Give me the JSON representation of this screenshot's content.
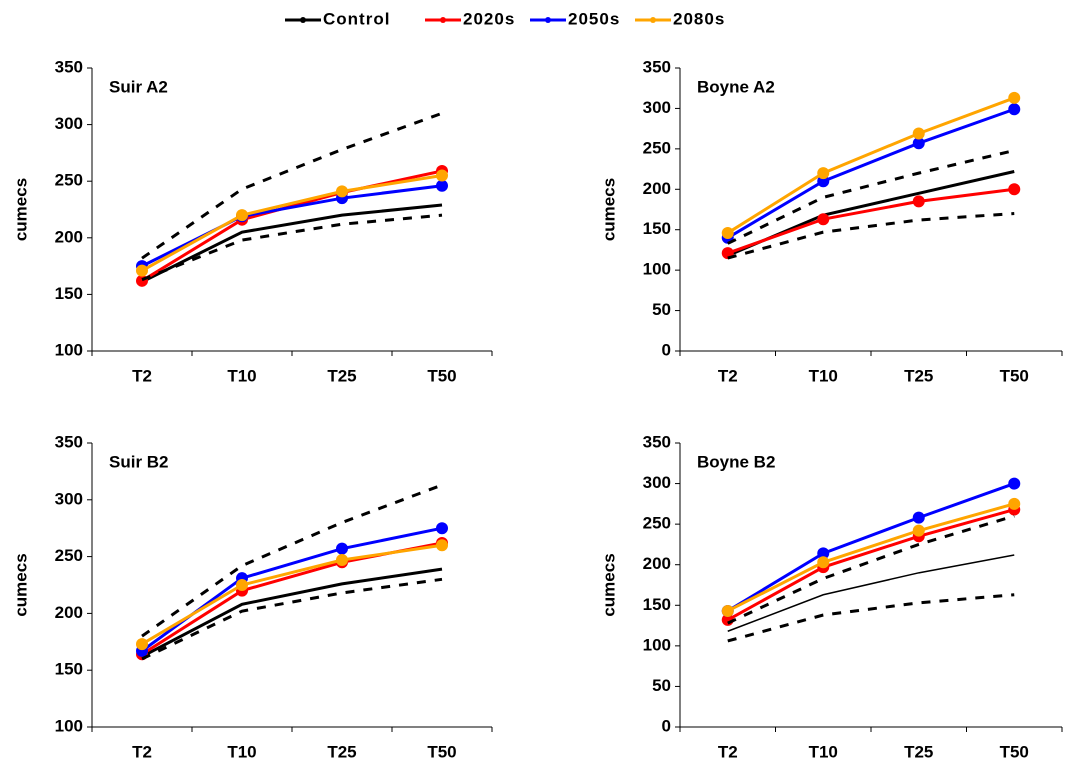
{
  "chart_data": [
    {
      "type": "line",
      "title": "Suir A2",
      "y_label": "cumecs",
      "categories": [
        "T2",
        "T10",
        "T25",
        "T50"
      ],
      "ylim": [
        100,
        350
      ],
      "yticks": [
        100,
        150,
        200,
        250,
        300,
        350
      ],
      "series": [
        {
          "name": "Control",
          "color": "#000000",
          "values": [
            161,
            205,
            220,
            229
          ]
        },
        {
          "name": "2020s",
          "color": "#ff0000",
          "values": [
            162,
            216,
            240,
            259
          ],
          "markers": true
        },
        {
          "name": "2050s",
          "color": "#0000ff",
          "values": [
            175,
            219,
            235,
            246
          ],
          "markers": true
        },
        {
          "name": "2080s",
          "color": "#ffa500",
          "values": [
            171,
            220,
            241,
            255
          ],
          "markers": true
        },
        {
          "color": "#000000",
          "values": [
            182,
            243,
            278,
            310
          ],
          "dashed": true
        },
        {
          "color": "#000000",
          "values": [
            163,
            198,
            212,
            220
          ],
          "dashed": true
        }
      ]
    },
    {
      "type": "line",
      "title": "Boyne A2",
      "y_label": "cumecs",
      "categories": [
        "T2",
        "T10",
        "T25",
        "T50"
      ],
      "ylim": [
        0,
        350
      ],
      "yticks": [
        0,
        50,
        100,
        150,
        200,
        250,
        300,
        350
      ],
      "series": [
        {
          "name": "Control",
          "color": "#000000",
          "values": [
            118,
            168,
            195,
            222
          ]
        },
        {
          "name": "2020s",
          "color": "#ff0000",
          "values": [
            121,
            163,
            185,
            200
          ],
          "markers": true
        },
        {
          "name": "2050s",
          "color": "#0000ff",
          "values": [
            140,
            210,
            257,
            299
          ],
          "markers": true
        },
        {
          "name": "2080s",
          "color": "#ffa500",
          "values": [
            146,
            220,
            269,
            313
          ],
          "markers": true
        },
        {
          "color": "#000000",
          "values": [
            133,
            190,
            220,
            248
          ],
          "dashed": true
        },
        {
          "color": "#000000",
          "values": [
            115,
            147,
            162,
            170
          ],
          "dashed": true
        }
      ]
    },
    {
      "type": "line",
      "title": "Suir B2",
      "y_label": "cumecs",
      "categories": [
        "T2",
        "T10",
        "T25",
        "T50"
      ],
      "ylim": [
        100,
        350
      ],
      "yticks": [
        100,
        150,
        200,
        250,
        300,
        350
      ],
      "series": [
        {
          "name": "Control",
          "color": "#000000",
          "values": [
            162,
            208,
            226,
            239
          ]
        },
        {
          "name": "2020s",
          "color": "#ff0000",
          "values": [
            164,
            220,
            245,
            262
          ],
          "markers": true
        },
        {
          "name": "2050s",
          "color": "#0000ff",
          "values": [
            167,
            231,
            257,
            275
          ],
          "markers": true
        },
        {
          "name": "2080s",
          "color": "#ffa500",
          "values": [
            173,
            225,
            247,
            260
          ],
          "markers": true
        },
        {
          "color": "#000000",
          "values": [
            180,
            242,
            280,
            313
          ],
          "dashed": true
        },
        {
          "color": "#000000",
          "values": [
            160,
            202,
            218,
            230
          ],
          "dashed": true
        }
      ]
    },
    {
      "type": "line",
      "title": "Boyne B2",
      "y_label": "cumecs",
      "categories": [
        "T2",
        "T10",
        "T25",
        "T50"
      ],
      "ylim": [
        0,
        350
      ],
      "yticks": [
        0,
        50,
        100,
        150,
        200,
        250,
        300,
        350
      ],
      "series": [
        {
          "name": "Control",
          "color": "#000000",
          "values": [
            118,
            163,
            190,
            212
          ],
          "thin": true
        },
        {
          "name": "2020s",
          "color": "#ff0000",
          "values": [
            132,
            197,
            235,
            268
          ],
          "markers": true
        },
        {
          "name": "2050s",
          "color": "#0000ff",
          "values": [
            143,
            214,
            258,
            300
          ],
          "markers": true
        },
        {
          "name": "2080s",
          "color": "#ffa500",
          "values": [
            143,
            203,
            242,
            275
          ],
          "markers": true
        },
        {
          "color": "#000000",
          "values": [
            128,
            183,
            225,
            260
          ],
          "dashed": true
        },
        {
          "color": "#000000",
          "values": [
            106,
            138,
            153,
            163
          ],
          "dashed": true
        }
      ]
    }
  ]
}
